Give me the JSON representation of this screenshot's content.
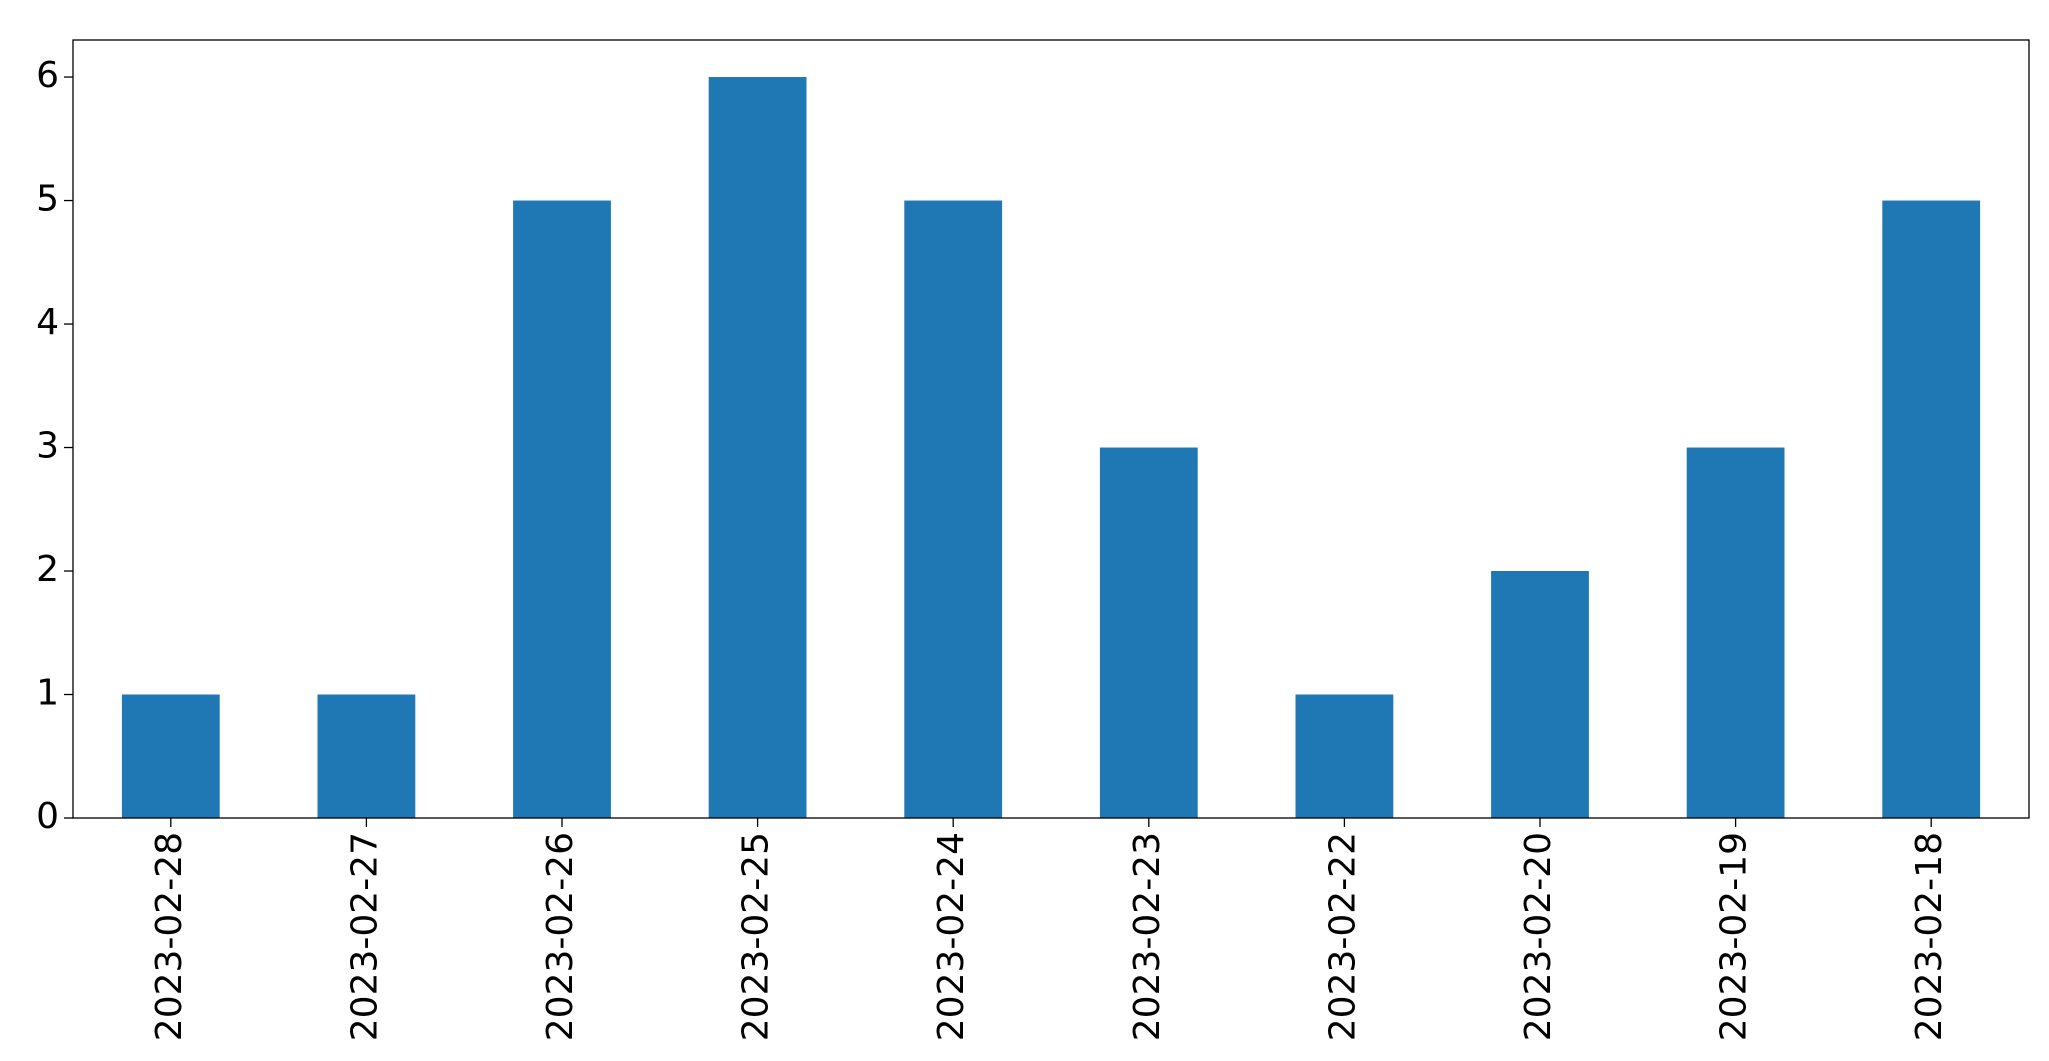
{
  "chart_data": {
    "type": "bar",
    "categories": [
      "2023-02-28",
      "2023-02-27",
      "2023-02-26",
      "2023-02-25",
      "2023-02-24",
      "2023-02-23",
      "2023-02-22",
      "2023-02-20",
      "2023-02-19",
      "2023-02-18"
    ],
    "values": [
      1,
      1,
      5,
      6,
      5,
      3,
      1,
      2,
      3,
      5
    ],
    "color": "#1f77b4",
    "ylim": [
      0,
      6.3
    ],
    "yticks": [
      0,
      1,
      2,
      3,
      4,
      5,
      6
    ],
    "grid": false
  }
}
